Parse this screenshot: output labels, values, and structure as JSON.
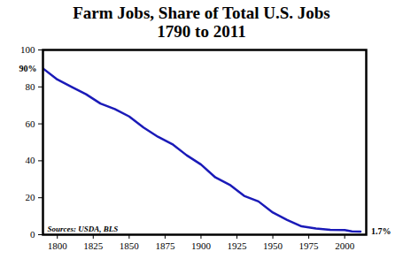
{
  "chart_data": {
    "type": "line",
    "title": "Farm Jobs, Share of Total U.S. Jobs",
    "subtitle": "1790 to 2011",
    "x": [
      1790,
      1800,
      1810,
      1820,
      1830,
      1840,
      1850,
      1860,
      1870,
      1880,
      1890,
      1900,
      1910,
      1920,
      1930,
      1940,
      1950,
      1960,
      1970,
      1980,
      1990,
      2000,
      2005,
      2011
    ],
    "values": [
      90,
      84,
      80,
      76,
      71,
      68,
      64,
      58,
      53,
      49,
      43,
      38,
      31,
      27,
      21,
      18,
      12,
      8,
      4.5,
      3.4,
      2.6,
      2.5,
      1.8,
      1.7
    ],
    "color": "#1a1ab8",
    "xlim": [
      1790,
      2015
    ],
    "xticks": [
      1800,
      1825,
      1850,
      1875,
      1900,
      1925,
      1950,
      1975,
      2000
    ],
    "ylim": [
      0,
      100
    ],
    "yticks": [
      0,
      20,
      40,
      60,
      80,
      100
    ],
    "grid": false,
    "annotations": [
      {
        "text": "90%",
        "x": 1790,
        "y": 90
      },
      {
        "text": "1.7%",
        "x": 2011,
        "y": 1.7
      }
    ],
    "source": "Sources: USDA, BLS"
  }
}
